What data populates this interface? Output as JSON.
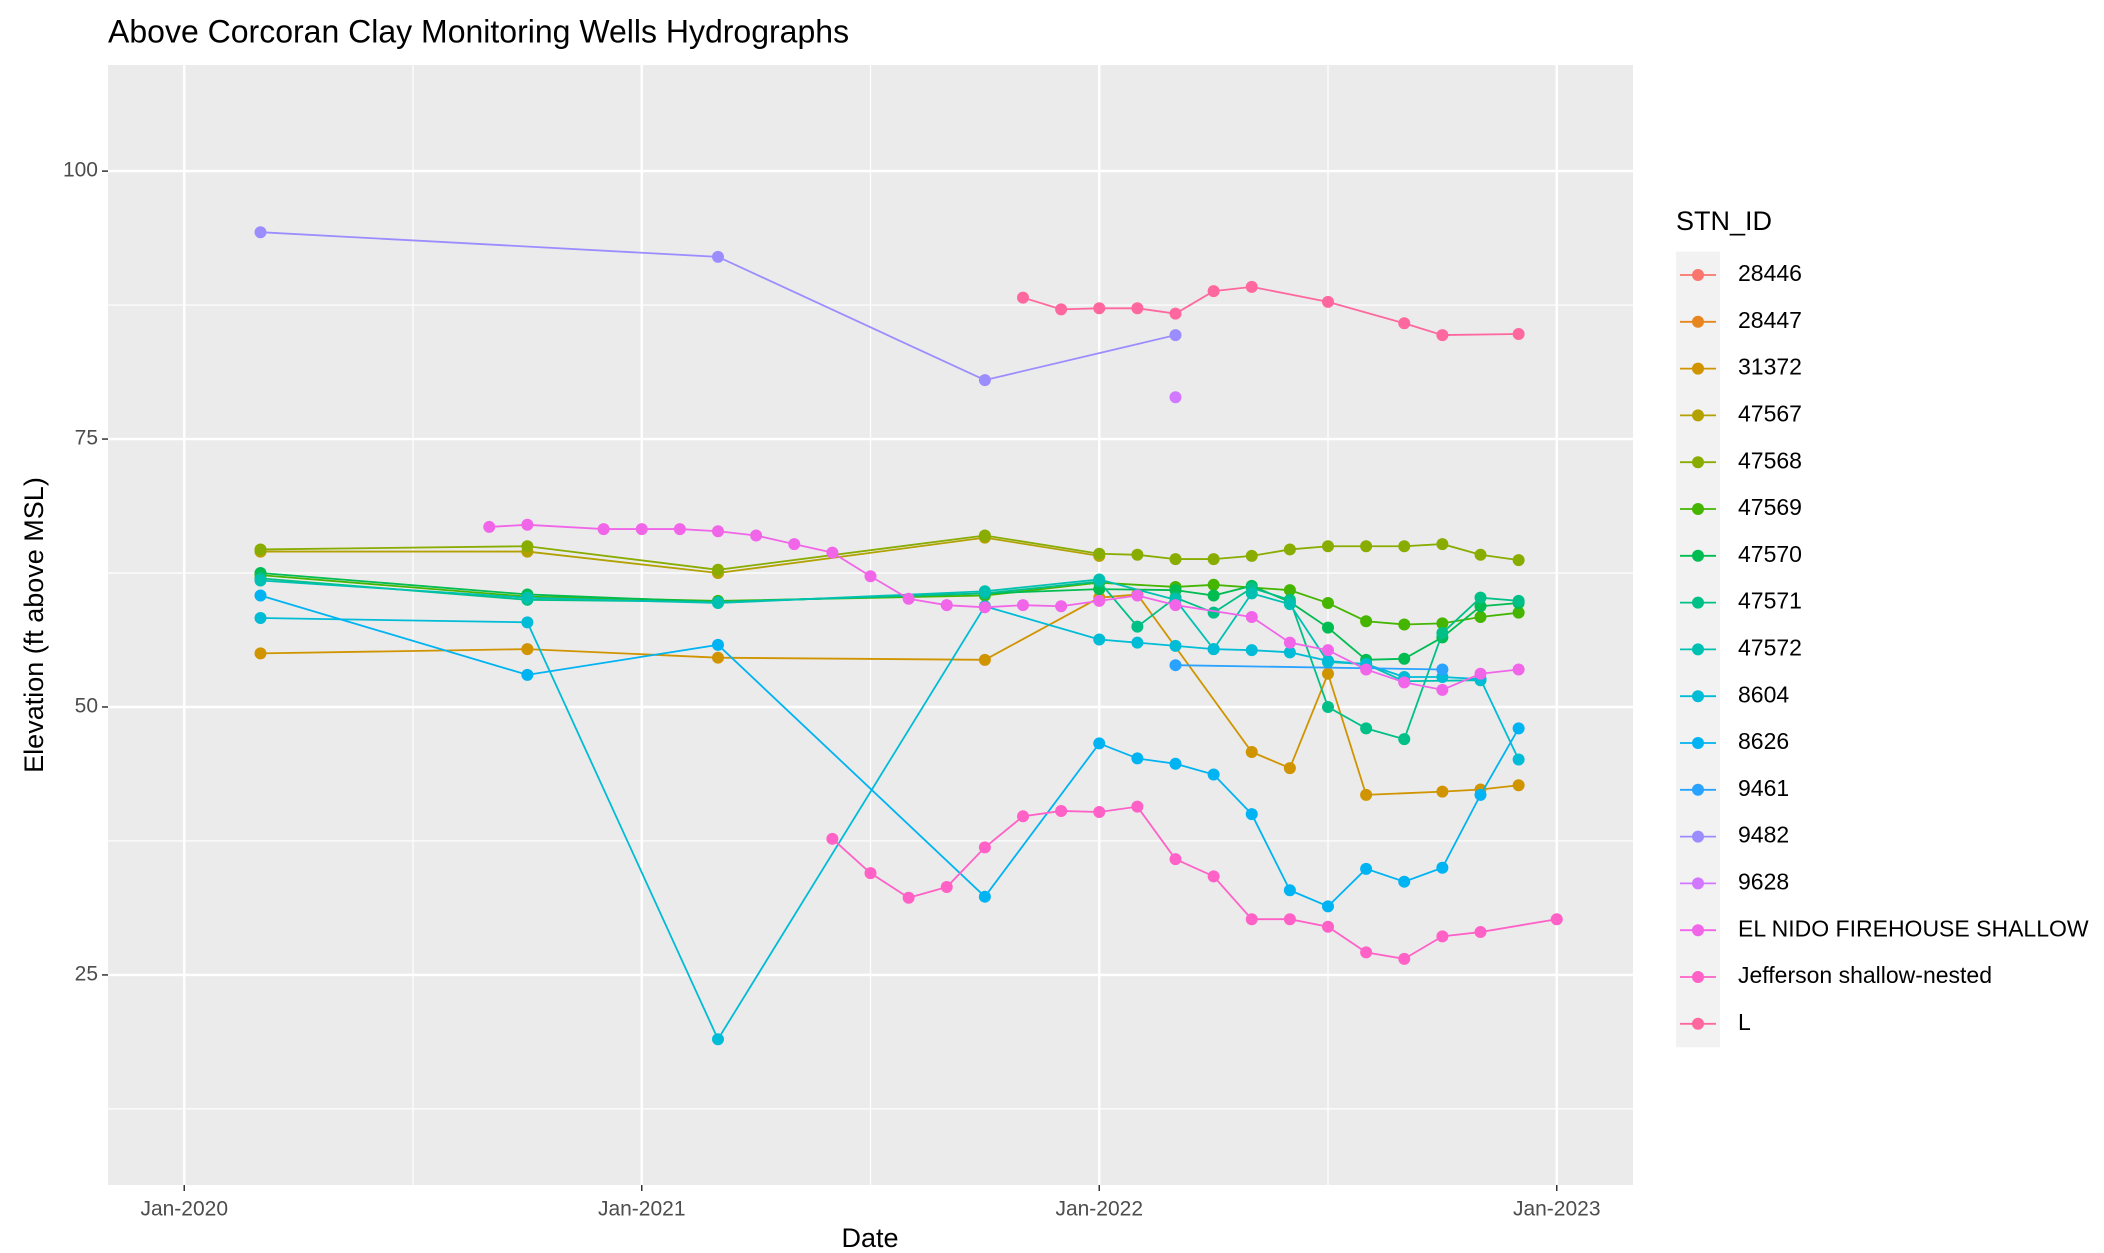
{
  "chart_data": {
    "type": "line",
    "title": "Above Corcoran Clay Monitoring Wells Hydrographs",
    "x_label": "Date",
    "y_label": "Elevation (ft above MSL)",
    "legend_title": "STN_ID",
    "legend": "right",
    "grid": true,
    "xlim": [
      "2019-11",
      "2023-03"
    ],
    "xticks": [
      {
        "value": "2020-01",
        "label": "Jan-2020"
      },
      {
        "value": "2021-01",
        "label": "Jan-2021"
      },
      {
        "value": "2022-01",
        "label": "Jan-2022"
      },
      {
        "value": "2023-01",
        "label": "Jan-2023"
      }
    ],
    "xminor": [
      "2020-07",
      "2021-07",
      "2022-07"
    ],
    "ylim": [
      5.4,
      109.9
    ],
    "yticks": [
      25,
      50,
      75,
      100
    ],
    "yminor": [
      12.5,
      37.5,
      62.5,
      87.5
    ],
    "series": [
      {
        "name": "28446",
        "color": "#F8766D",
        "x": [],
        "values": []
      },
      {
        "name": "28447",
        "color": "#E7851E",
        "x": [],
        "values": []
      },
      {
        "name": "31372",
        "color": "#D09400",
        "x": [
          "2020-03",
          "2020-10",
          "2021-03",
          "2021-10",
          "2022-01",
          "2022-02",
          "2022-05",
          "2022-06",
          "2022-07",
          "2022-08",
          "2022-10",
          "2022-11",
          "2022-12"
        ],
        "values": [
          55.0,
          55.4,
          54.6,
          54.4,
          60.2,
          60.5,
          45.8,
          44.3,
          53.1,
          41.8,
          42.1,
          42.3,
          42.7
        ]
      },
      {
        "name": "47567",
        "color": "#B2A100",
        "x": [
          "2020-03",
          "2020-10",
          "2021-03",
          "2021-10",
          "2022-01"
        ],
        "values": [
          64.5,
          64.5,
          62.5,
          65.8,
          64.1
        ]
      },
      {
        "name": "47568",
        "color": "#89AC00",
        "x": [
          "2020-03",
          "2020-10",
          "2021-03",
          "2021-10",
          "2022-01",
          "2022-02",
          "2022-03",
          "2022-04",
          "2022-05",
          "2022-06",
          "2022-07",
          "2022-08",
          "2022-09",
          "2022-10",
          "2022-11",
          "2022-12"
        ],
        "values": [
          64.7,
          65.0,
          62.8,
          66.0,
          64.3,
          64.2,
          63.8,
          63.8,
          64.1,
          64.7,
          65.0,
          65.0,
          65.0,
          65.2,
          64.2,
          63.7
        ]
      },
      {
        "name": "47569",
        "color": "#45B500",
        "x": [
          "2020-03",
          "2020-10",
          "2021-03",
          "2021-10",
          "2022-01",
          "2022-03",
          "2022-04",
          "2022-06",
          "2022-07",
          "2022-08",
          "2022-09",
          "2022-10",
          "2022-11",
          "2022-12"
        ],
        "values": [
          62.3,
          60.3,
          59.9,
          60.4,
          61.6,
          61.2,
          61.4,
          60.9,
          59.7,
          58.0,
          57.7,
          57.8,
          58.4,
          58.8
        ]
      },
      {
        "name": "47570",
        "color": "#00BC51",
        "x": [
          "2020-03",
          "2020-10",
          "2021-03",
          "2021-10",
          "2022-01",
          "2022-03",
          "2022-04",
          "2022-05",
          "2022-06",
          "2022-07",
          "2022-08",
          "2022-09",
          "2022-10",
          "2022-11",
          "2022-12"
        ],
        "values": [
          62.5,
          60.5,
          59.8,
          60.6,
          61.0,
          60.9,
          60.4,
          61.3,
          59.8,
          57.4,
          54.4,
          54.5,
          56.5,
          59.4,
          59.7
        ]
      },
      {
        "name": "47571",
        "color": "#00C087",
        "x": [
          "2020-03",
          "2020-10",
          "2021-03",
          "2021-10",
          "2022-01",
          "2022-02",
          "2022-03",
          "2022-04",
          "2022-05",
          "2022-06",
          "2022-07",
          "2022-08",
          "2022-09",
          "2022-10",
          "2022-11",
          "2022-12"
        ],
        "values": [
          62.0,
          60.0,
          59.8,
          60.6,
          61.7,
          57.5,
          60.2,
          58.8,
          61.1,
          60.0,
          50.0,
          48.0,
          47.0,
          56.9,
          60.2,
          59.9
        ]
      },
      {
        "name": "47572",
        "color": "#00C0B2",
        "x": [
          "2020-03",
          "2020-10",
          "2021-03",
          "2021-10",
          "2022-01",
          "2022-03",
          "2022-04",
          "2022-05",
          "2022-06",
          "2022-07",
          "2022-08",
          "2022-09",
          "2022-11"
        ],
        "values": [
          61.8,
          60.2,
          59.7,
          60.8,
          61.9,
          60.0,
          55.4,
          60.6,
          59.6,
          54.2,
          54.0,
          52.4,
          52.5
        ]
      },
      {
        "name": "8604",
        "color": "#00BCD6",
        "x": [
          "2020-03",
          "2020-10",
          "2021-03",
          "2021-10",
          "2022-01",
          "2022-02",
          "2022-03",
          "2022-04",
          "2022-05",
          "2022-06",
          "2022-07",
          "2022-08",
          "2022-09",
          "2022-10",
          "2022-11",
          "2022-12"
        ],
        "values": [
          58.3,
          57.9,
          19.0,
          59.4,
          56.3,
          56.0,
          55.7,
          55.4,
          55.3,
          55.1,
          54.3,
          54.0,
          52.8,
          52.8,
          52.6,
          45.1
        ]
      },
      {
        "name": "8626",
        "color": "#00B3F2",
        "x": [
          "2020-03",
          "2020-10",
          "2021-03",
          "2021-10",
          "2022-01",
          "2022-02",
          "2022-03",
          "2022-04",
          "2022-05",
          "2022-06",
          "2022-07",
          "2022-08",
          "2022-09",
          "2022-10",
          "2022-11",
          "2022-12"
        ],
        "values": [
          60.4,
          53.0,
          55.8,
          32.3,
          46.6,
          45.2,
          44.7,
          43.7,
          40.0,
          32.9,
          31.4,
          34.9,
          33.7,
          35.0,
          41.8,
          48.0
        ]
      },
      {
        "name": "9461",
        "color": "#29A3FF",
        "x": [
          "2022-03",
          "2022-10"
        ],
        "values": [
          53.9,
          53.5
        ]
      },
      {
        "name": "9482",
        "color": "#9C8DFF",
        "x": [
          "2020-03",
          "2021-03",
          "2021-10",
          "2022-03"
        ],
        "values": [
          94.3,
          92.0,
          80.5,
          84.7
        ]
      },
      {
        "name": "9628",
        "color": "#D277FF",
        "x": [
          "2022-03"
        ],
        "values": [
          78.9
        ]
      },
      {
        "name": "EL NIDO FIREHOUSE SHALLOW",
        "color": "#F166E8",
        "x": [
          "2020-09",
          "2020-10",
          "2020-12",
          "2021-01",
          "2021-02",
          "2021-03",
          "2021-04",
          "2021-05",
          "2021-06",
          "2021-07",
          "2021-08",
          "2021-09",
          "2021-10",
          "2021-11",
          "2021-12",
          "2022-01",
          "2022-02",
          "2022-03",
          "2022-05",
          "2022-06",
          "2022-07",
          "2022-08",
          "2022-09",
          "2022-10",
          "2022-11",
          "2022-12"
        ],
        "values": [
          66.8,
          67.0,
          66.6,
          66.6,
          66.6,
          66.4,
          66.0,
          65.2,
          64.4,
          62.2,
          60.1,
          59.5,
          59.3,
          59.5,
          59.4,
          59.9,
          60.4,
          59.5,
          58.4,
          56.0,
          55.3,
          53.5,
          52.3,
          51.6,
          53.1,
          53.5
        ]
      },
      {
        "name": "Jefferson shallow-nested",
        "color": "#FF61C7",
        "x": [
          "2021-06",
          "2021-07",
          "2021-08",
          "2021-09",
          "2021-10",
          "2021-11",
          "2021-12",
          "2022-01",
          "2022-02",
          "2022-03",
          "2022-04",
          "2022-05",
          "2022-06",
          "2022-07",
          "2022-08",
          "2022-09",
          "2022-10",
          "2022-11",
          "2023-01"
        ],
        "values": [
          37.7,
          34.5,
          32.2,
          33.2,
          36.9,
          39.8,
          40.3,
          40.2,
          40.7,
          35.8,
          34.2,
          30.2,
          30.2,
          29.5,
          27.1,
          26.5,
          28.6,
          29.0,
          30.2
        ]
      },
      {
        "name": "L",
        "color": "#FF689E",
        "x": [
          "2021-11",
          "2021-12",
          "2022-01",
          "2022-02",
          "2022-03",
          "2022-04",
          "2022-05",
          "2022-07",
          "2022-09",
          "2022-10",
          "2022-12"
        ],
        "values": [
          88.2,
          87.1,
          87.2,
          87.2,
          86.7,
          88.8,
          89.2,
          87.8,
          85.8,
          84.7,
          84.8
        ]
      }
    ]
  }
}
